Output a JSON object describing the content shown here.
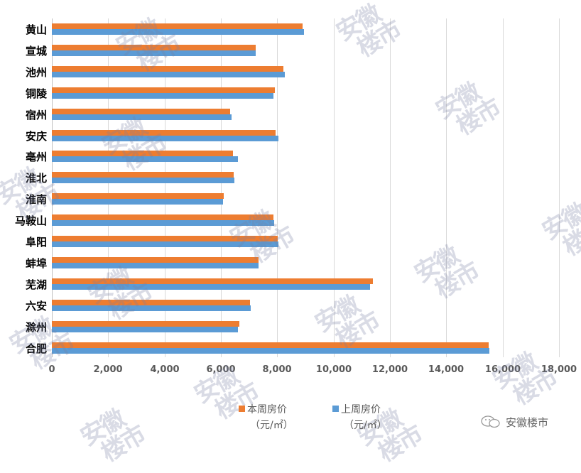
{
  "chart_data": {
    "type": "bar",
    "orientation": "horizontal",
    "title": "",
    "xlabel": "",
    "ylabel": "",
    "xlim": [
      0,
      18000
    ],
    "x_ticks": [
      "0",
      "2,000",
      "4,000",
      "6,000",
      "8,000",
      "10,000",
      "12,000",
      "14,000",
      "16,000",
      "18,000"
    ],
    "grid": true,
    "legend_position": "bottom",
    "categories": [
      "黄山",
      "宣城",
      "池州",
      "铜陵",
      "宿州",
      "安庆",
      "亳州",
      "淮北",
      "淮南",
      "马鞍山",
      "阜阳",
      "蚌埠",
      "芜湖",
      "六安",
      "滁州",
      "合肥"
    ],
    "series": [
      {
        "name": "本周房价（元/㎡）",
        "color": "#ED7D31",
        "values": [
          8900,
          7230,
          8220,
          7920,
          6330,
          7940,
          6430,
          6450,
          6100,
          7860,
          8020,
          7340,
          11390,
          7030,
          6650,
          15500
        ]
      },
      {
        "name": "上周房价（元/㎡）",
        "color": "#5B9BD5",
        "values": [
          8950,
          7230,
          8270,
          7860,
          6380,
          8040,
          6600,
          6480,
          6070,
          7890,
          8040,
          7340,
          11290,
          7060,
          6600,
          15530
        ]
      }
    ]
  },
  "legend": {
    "current": {
      "label": "本周房价",
      "unit": "（元/㎡）",
      "color": "#ED7D31"
    },
    "previous": {
      "label": "上周房价",
      "unit": "（元/㎡）",
      "color": "#5B9BD5"
    }
  },
  "watermark": {
    "text_top": "安徽",
    "text_bottom": "楼市"
  },
  "footer": {
    "account": "安徽楼市"
  }
}
